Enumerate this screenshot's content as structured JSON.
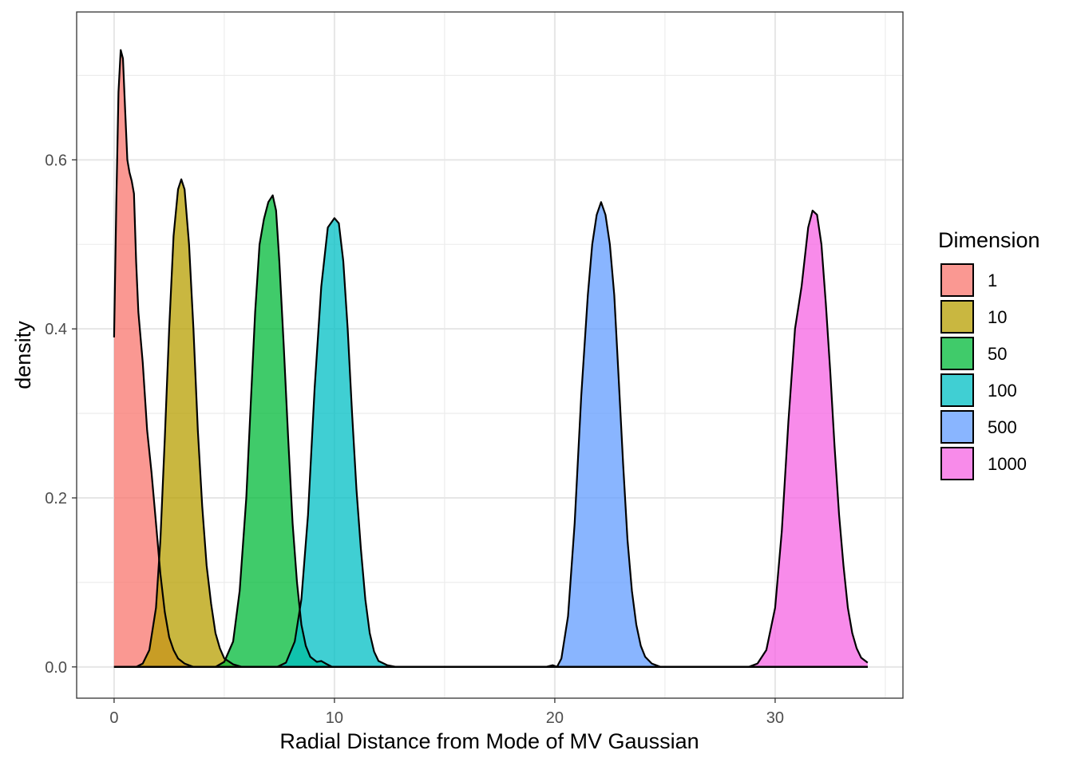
{
  "chart_data": {
    "type": "area",
    "subtype": "density",
    "xlabel": "Radial Distance from Mode of MV Gaussian",
    "ylabel": "density",
    "xlim": [
      -1.7,
      35.8
    ],
    "ylim": [
      -0.037,
      0.775
    ],
    "x_ticks": [
      {
        "value": 0,
        "label": "0"
      },
      {
        "value": 10,
        "label": "10"
      },
      {
        "value": 20,
        "label": "20"
      },
      {
        "value": 30,
        "label": "30"
      }
    ],
    "y_ticks": [
      {
        "value": 0.0,
        "label": "0.0"
      },
      {
        "value": 0.2,
        "label": "0.2"
      },
      {
        "value": 0.4,
        "label": "0.4"
      },
      {
        "value": 0.6,
        "label": "0.6"
      }
    ],
    "x_minor": [
      5,
      15,
      25,
      35
    ],
    "y_minor": [
      0.1,
      0.3,
      0.5,
      0.7
    ],
    "grid": true,
    "legend": {
      "title": "Dimension",
      "position": "right"
    },
    "colors": {
      "1": "#F8766D",
      "10": "#B79F00",
      "50": "#00BA38",
      "100": "#00BFC4",
      "500": "#619CFF",
      "1000": "#F564E3"
    },
    "fill_alpha": 0.75,
    "series": [
      {
        "name": "1",
        "points": [
          [
            0.0,
            0.39
          ],
          [
            0.1,
            0.55
          ],
          [
            0.2,
            0.68
          ],
          [
            0.3,
            0.73
          ],
          [
            0.4,
            0.72
          ],
          [
            0.5,
            0.66
          ],
          [
            0.6,
            0.6
          ],
          [
            0.7,
            0.585
          ],
          [
            0.8,
            0.575
          ],
          [
            0.9,
            0.56
          ],
          [
            1.0,
            0.48
          ],
          [
            1.1,
            0.42
          ],
          [
            1.3,
            0.36
          ],
          [
            1.5,
            0.28
          ],
          [
            1.7,
            0.23
          ],
          [
            1.9,
            0.17
          ],
          [
            2.1,
            0.11
          ],
          [
            2.3,
            0.065
          ],
          [
            2.5,
            0.035
          ],
          [
            2.7,
            0.02
          ],
          [
            2.9,
            0.01
          ],
          [
            3.2,
            0.004
          ],
          [
            3.6,
            0.0
          ],
          [
            34.2,
            0.0
          ]
        ]
      },
      {
        "name": "10",
        "points": [
          [
            0.0,
            0.0
          ],
          [
            1.0,
            0.0
          ],
          [
            1.3,
            0.004
          ],
          [
            1.6,
            0.02
          ],
          [
            1.9,
            0.07
          ],
          [
            2.1,
            0.15
          ],
          [
            2.3,
            0.27
          ],
          [
            2.5,
            0.4
          ],
          [
            2.7,
            0.51
          ],
          [
            2.9,
            0.565
          ],
          [
            3.05,
            0.577
          ],
          [
            3.2,
            0.565
          ],
          [
            3.4,
            0.5
          ],
          [
            3.6,
            0.4
          ],
          [
            3.8,
            0.28
          ],
          [
            4.0,
            0.19
          ],
          [
            4.2,
            0.12
          ],
          [
            4.4,
            0.075
          ],
          [
            4.6,
            0.04
          ],
          [
            4.8,
            0.022
          ],
          [
            5.0,
            0.01
          ],
          [
            5.4,
            0.003
          ],
          [
            5.8,
            0.0
          ],
          [
            34.2,
            0.0
          ]
        ]
      },
      {
        "name": "50",
        "points": [
          [
            0.0,
            0.0
          ],
          [
            4.6,
            0.0
          ],
          [
            5.0,
            0.006
          ],
          [
            5.4,
            0.03
          ],
          [
            5.7,
            0.09
          ],
          [
            6.0,
            0.2
          ],
          [
            6.2,
            0.31
          ],
          [
            6.4,
            0.42
          ],
          [
            6.6,
            0.5
          ],
          [
            6.8,
            0.53
          ],
          [
            7.0,
            0.55
          ],
          [
            7.2,
            0.558
          ],
          [
            7.35,
            0.54
          ],
          [
            7.5,
            0.48
          ],
          [
            7.7,
            0.38
          ],
          [
            7.9,
            0.27
          ],
          [
            8.1,
            0.17
          ],
          [
            8.3,
            0.1
          ],
          [
            8.5,
            0.05
          ],
          [
            8.7,
            0.025
          ],
          [
            8.9,
            0.012
          ],
          [
            9.2,
            0.006
          ],
          [
            9.4,
            0.007
          ],
          [
            9.6,
            0.004
          ],
          [
            9.9,
            0.0
          ],
          [
            34.2,
            0.0
          ]
        ]
      },
      {
        "name": "100",
        "points": [
          [
            0.0,
            0.0
          ],
          [
            7.4,
            0.0
          ],
          [
            7.8,
            0.005
          ],
          [
            8.2,
            0.03
          ],
          [
            8.5,
            0.08
          ],
          [
            8.8,
            0.18
          ],
          [
            9.1,
            0.33
          ],
          [
            9.4,
            0.45
          ],
          [
            9.7,
            0.52
          ],
          [
            10.0,
            0.531
          ],
          [
            10.2,
            0.525
          ],
          [
            10.4,
            0.48
          ],
          [
            10.6,
            0.4
          ],
          [
            10.8,
            0.3
          ],
          [
            11.0,
            0.21
          ],
          [
            11.2,
            0.14
          ],
          [
            11.4,
            0.08
          ],
          [
            11.6,
            0.04
          ],
          [
            11.8,
            0.018
          ],
          [
            12.0,
            0.007
          ],
          [
            12.4,
            0.002
          ],
          [
            12.8,
            0.0
          ],
          [
            34.2,
            0.0
          ]
        ]
      },
      {
        "name": "500",
        "points": [
          [
            0.0,
            0.0
          ],
          [
            19.6,
            0.0
          ],
          [
            19.9,
            0.002
          ],
          [
            20.1,
            0.0
          ],
          [
            20.3,
            0.01
          ],
          [
            20.6,
            0.06
          ],
          [
            20.9,
            0.17
          ],
          [
            21.2,
            0.32
          ],
          [
            21.5,
            0.44
          ],
          [
            21.7,
            0.5
          ],
          [
            21.9,
            0.535
          ],
          [
            22.1,
            0.55
          ],
          [
            22.3,
            0.535
          ],
          [
            22.5,
            0.5
          ],
          [
            22.7,
            0.44
          ],
          [
            22.9,
            0.34
          ],
          [
            23.1,
            0.24
          ],
          [
            23.3,
            0.15
          ],
          [
            23.5,
            0.09
          ],
          [
            23.7,
            0.05
          ],
          [
            23.9,
            0.025
          ],
          [
            24.1,
            0.012
          ],
          [
            24.4,
            0.004
          ],
          [
            24.8,
            0.0
          ],
          [
            34.2,
            0.0
          ]
        ]
      },
      {
        "name": "1000",
        "points": [
          [
            0.0,
            0.0
          ],
          [
            28.8,
            0.0
          ],
          [
            29.2,
            0.004
          ],
          [
            29.6,
            0.02
          ],
          [
            30.0,
            0.07
          ],
          [
            30.3,
            0.16
          ],
          [
            30.6,
            0.29
          ],
          [
            30.9,
            0.4
          ],
          [
            31.2,
            0.45
          ],
          [
            31.5,
            0.52
          ],
          [
            31.7,
            0.54
          ],
          [
            31.9,
            0.535
          ],
          [
            32.1,
            0.5
          ],
          [
            32.3,
            0.43
          ],
          [
            32.5,
            0.35
          ],
          [
            32.7,
            0.26
          ],
          [
            32.9,
            0.18
          ],
          [
            33.1,
            0.12
          ],
          [
            33.3,
            0.07
          ],
          [
            33.5,
            0.04
          ],
          [
            33.7,
            0.022
          ],
          [
            33.9,
            0.011
          ],
          [
            34.2,
            0.005
          ]
        ]
      }
    ]
  }
}
